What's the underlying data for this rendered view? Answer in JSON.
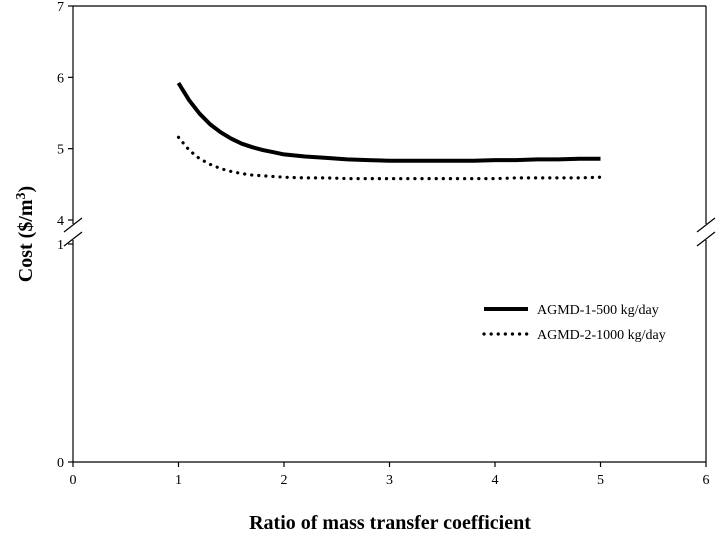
{
  "chart_data": {
    "type": "line",
    "xlabel": "Ratio of mass transfer coefficient",
    "ylabel_main": "Cost ($/m",
    "ylabel_sup": "3",
    "ylabel_close": ")",
    "xlim": [
      0,
      6
    ],
    "x_ticks": [
      0,
      1,
      2,
      3,
      4,
      5,
      6
    ],
    "y_axis_break": true,
    "y_upper_range": [
      4,
      7
    ],
    "y_upper_ticks": [
      4,
      5,
      6,
      7
    ],
    "y_lower_range": [
      0,
      1
    ],
    "y_lower_ticks": [
      0,
      1
    ],
    "grid": false,
    "legend_position": "right",
    "series": [
      {
        "name": "AGMD-1-500 kg/day",
        "style": "solid",
        "x": [
          1.0,
          1.1,
          1.2,
          1.3,
          1.4,
          1.5,
          1.6,
          1.7,
          1.8,
          1.9,
          2.0,
          2.2,
          2.4,
          2.6,
          2.8,
          3.0,
          3.2,
          3.4,
          3.6,
          3.8,
          4.0,
          4.2,
          4.4,
          4.6,
          4.8,
          5.0
        ],
        "y": [
          5.92,
          5.68,
          5.49,
          5.34,
          5.23,
          5.14,
          5.07,
          5.02,
          4.98,
          4.95,
          4.92,
          4.89,
          4.87,
          4.85,
          4.84,
          4.83,
          4.83,
          4.83,
          4.83,
          4.83,
          4.84,
          4.84,
          4.85,
          4.85,
          4.86,
          4.86
        ]
      },
      {
        "name": "AGMD-2-1000 kg/day",
        "style": "dotted",
        "x": [
          1.0,
          1.1,
          1.2,
          1.3,
          1.4,
          1.5,
          1.6,
          1.7,
          1.8,
          1.9,
          2.0,
          2.2,
          2.4,
          2.6,
          2.8,
          3.0,
          3.2,
          3.4,
          3.6,
          3.8,
          4.0,
          4.2,
          4.4,
          4.6,
          4.8,
          5.0
        ],
        "y": [
          5.16,
          4.98,
          4.86,
          4.78,
          4.72,
          4.68,
          4.65,
          4.63,
          4.62,
          4.61,
          4.6,
          4.59,
          4.59,
          4.58,
          4.58,
          4.58,
          4.58,
          4.58,
          4.58,
          4.58,
          4.58,
          4.59,
          4.59,
          4.59,
          4.59,
          4.6
        ]
      }
    ]
  },
  "colors": {
    "line": "#000000",
    "background": "#ffffff"
  }
}
